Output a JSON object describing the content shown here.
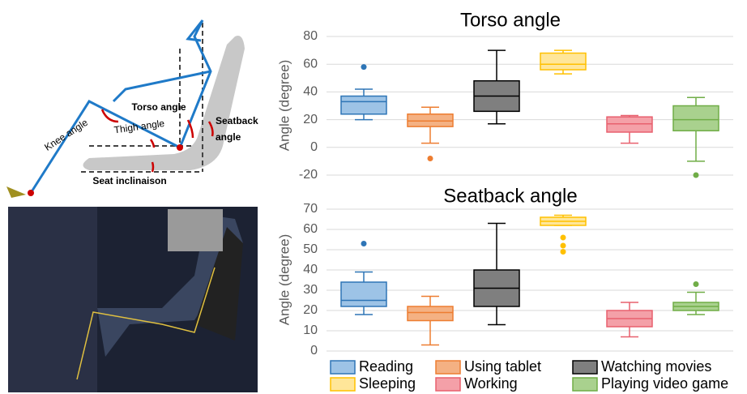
{
  "diagram": {
    "torso_label": "Torso angle",
    "thigh_label": "Thigh angle",
    "knee_label": "Knee angle",
    "seatback_label": [
      "Seatback",
      "angle"
    ],
    "seat_label": "Seat inclinaison"
  },
  "chart_data": [
    {
      "type": "box",
      "title": "Torso angle",
      "y_label": "Angle (degree)",
      "ylim": [
        -20,
        80
      ],
      "yticks": [
        -20,
        0,
        20,
        40,
        60,
        80
      ],
      "grid": true,
      "series": [
        {
          "color": "#2e75b6",
          "fill": "#9dc3e6",
          "min": 20,
          "q1": 24,
          "median": 33,
          "q3": 37,
          "max": 42,
          "outliers": [
            58
          ]
        },
        {
          "color": "#ed7d31",
          "fill": "#f4b183",
          "min": 3,
          "q1": 15,
          "median": 19,
          "q3": 24,
          "max": 29,
          "outliers": [
            -8
          ]
        },
        {
          "color": "#000000",
          "fill": "#7f7f7f",
          "min": 17,
          "q1": 26,
          "median": 37,
          "q3": 48,
          "max": 70,
          "outliers": []
        },
        {
          "color": "#ffc000",
          "fill": "#ffe699",
          "min": 53,
          "q1": 56,
          "median": 60,
          "q3": 68,
          "max": 70,
          "outliers": []
        },
        {
          "color": "#e8606e",
          "fill": "#f4a0a8",
          "min": 3,
          "q1": 11,
          "median": 17,
          "q3": 22,
          "max": 23,
          "outliers": []
        },
        {
          "color": "#70ad47",
          "fill": "#a9d18e",
          "min": -10,
          "q1": 12,
          "median": 20,
          "q3": 30,
          "max": 36,
          "outliers": [
            -20
          ]
        }
      ]
    },
    {
      "type": "box",
      "title": "Seatback angle",
      "y_label": "Angle (degree)",
      "ylim": [
        0,
        70
      ],
      "yticks": [
        0,
        10,
        20,
        30,
        40,
        50,
        60,
        70
      ],
      "grid": true,
      "legend": "bottom",
      "series": [
        {
          "name": "Reading",
          "color": "#2e75b6",
          "fill": "#9dc3e6",
          "min": 18,
          "q1": 22,
          "median": 25,
          "q3": 34,
          "max": 39,
          "outliers": [
            53
          ]
        },
        {
          "name": "Using tablet",
          "color": "#ed7d31",
          "fill": "#f4b183",
          "min": 3,
          "q1": 15,
          "median": 19,
          "q3": 22,
          "max": 27,
          "outliers": []
        },
        {
          "name": "Watching movies",
          "color": "#000000",
          "fill": "#7f7f7f",
          "min": 13,
          "q1": 22,
          "median": 31,
          "q3": 40,
          "max": 63,
          "outliers": []
        },
        {
          "name": "Sleeping",
          "color": "#ffc000",
          "fill": "#ffe699",
          "min": 62,
          "q1": 62,
          "median": 64,
          "q3": 66,
          "max": 67,
          "outliers": [
            56,
            52,
            49
          ]
        },
        {
          "name": "Working",
          "color": "#e8606e",
          "fill": "#f4a0a8",
          "min": 7,
          "q1": 12,
          "median": 16,
          "q3": 20,
          "max": 24,
          "outliers": []
        },
        {
          "name": "Playing video game",
          "color": "#70ad47",
          "fill": "#a9d18e",
          "min": 18,
          "q1": 20,
          "median": 22,
          "q3": 24,
          "max": 29,
          "outliers": [
            33
          ]
        }
      ]
    }
  ]
}
